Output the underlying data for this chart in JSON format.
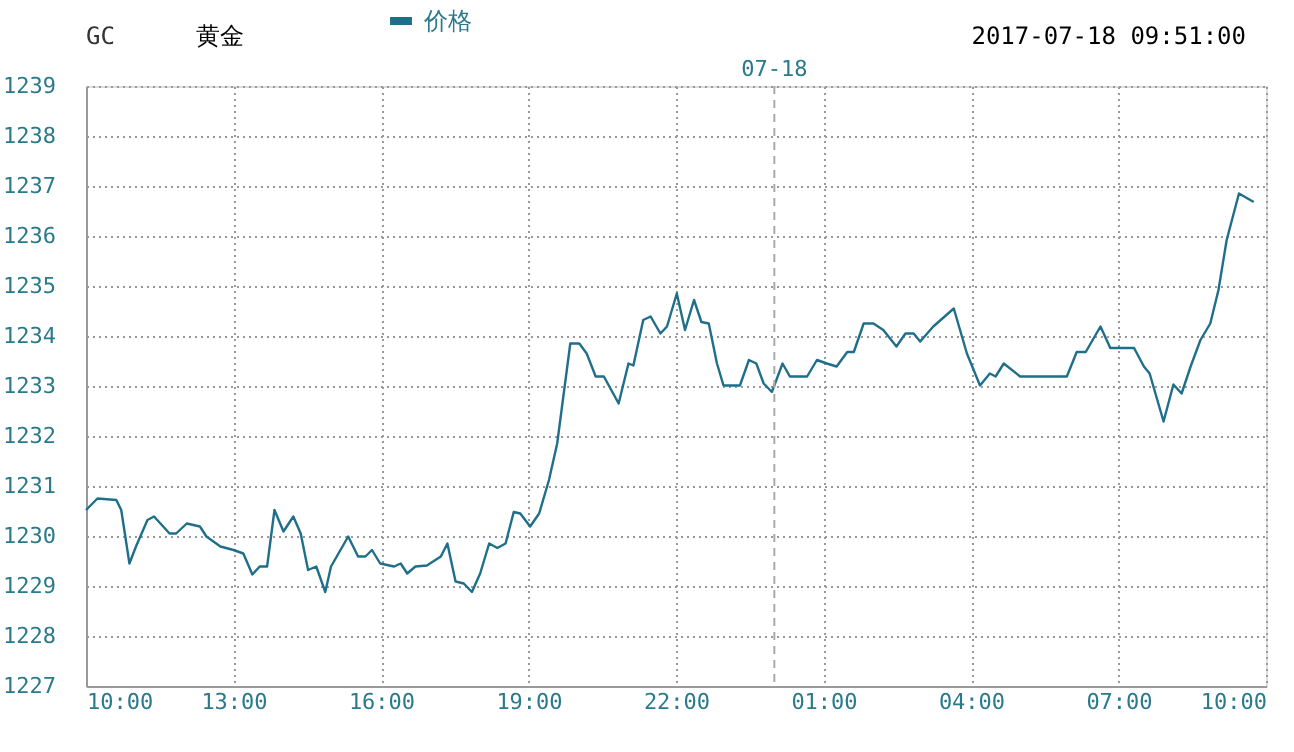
{
  "chart_data": {
    "type": "line",
    "title": "GC",
    "subtitle": "黄金",
    "annotations": [
      "2017-07-18 09:51:00"
    ],
    "legend": "top",
    "grid": true,
    "line_style": "solid",
    "marker": "none",
    "xlim": [
      "2017-07-17T10:00",
      "2017-07-18T10:00"
    ],
    "xticks": [
      {
        "value": "2017-07-17T10:00",
        "label": "10:00"
      },
      {
        "value": "2017-07-17T13:00",
        "label": "13:00"
      },
      {
        "value": "2017-07-17T16:00",
        "label": "16:00"
      },
      {
        "value": "2017-07-17T19:00",
        "label": "19:00"
      },
      {
        "value": "2017-07-17T22:00",
        "label": "22:00"
      },
      {
        "value": "2017-07-18T01:00",
        "label": "01:00"
      },
      {
        "value": "2017-07-18T04:00",
        "label": "04:00"
      },
      {
        "value": "2017-07-18T07:00",
        "label": "07:00"
      },
      {
        "value": "2017-07-18T10:00",
        "label": "10:00"
      }
    ],
    "ylim": [
      1227,
      1239
    ],
    "yticks": [
      1227,
      1228,
      1229,
      1230,
      1231,
      1232,
      1233,
      1234,
      1235,
      1236,
      1237,
      1238,
      1239
    ],
    "ref_lines": [
      {
        "axis": "x",
        "value": "2017-07-18T00:00",
        "label": "07-18",
        "line_style": "dashed",
        "color": "#aaaaaa"
      }
    ],
    "x": [
      "2017-07-17T10:00",
      "2017-07-17T10:14",
      "2017-07-17T10:37",
      "2017-07-17T10:43",
      "2017-07-17T10:53",
      "2017-07-17T11:01",
      "2017-07-17T11:15",
      "2017-07-17T11:23",
      "2017-07-17T11:42",
      "2017-07-17T11:50",
      "2017-07-17T12:03",
      "2017-07-17T12:19",
      "2017-07-17T12:27",
      "2017-07-17T12:44",
      "2017-07-17T13:00",
      "2017-07-17T13:12",
      "2017-07-17T13:23",
      "2017-07-17T13:32",
      "2017-07-17T13:41",
      "2017-07-17T13:50",
      "2017-07-17T14:01",
      "2017-07-17T14:13",
      "2017-07-17T14:22",
      "2017-07-17T14:31",
      "2017-07-17T14:41",
      "2017-07-17T14:52",
      "2017-07-17T14:59",
      "2017-07-17T15:20",
      "2017-07-17T15:32",
      "2017-07-17T15:41",
      "2017-07-17T15:49",
      "2017-07-17T15:59",
      "2017-07-17T16:16",
      "2017-07-17T16:24",
      "2017-07-17T16:32",
      "2017-07-17T16:42",
      "2017-07-17T16:56",
      "2017-07-17T17:13",
      "2017-07-17T17:21",
      "2017-07-17T17:31",
      "2017-07-17T17:41",
      "2017-07-17T17:51",
      "2017-07-17T18:01",
      "2017-07-17T18:12",
      "2017-07-17T18:22",
      "2017-07-17T18:32",
      "2017-07-17T18:42",
      "2017-07-17T18:50",
      "2017-07-17T19:02",
      "2017-07-17T19:13",
      "2017-07-17T19:25",
      "2017-07-17T19:35",
      "2017-07-17T19:43",
      "2017-07-17T19:51",
      "2017-07-17T20:02",
      "2017-07-17T20:11",
      "2017-07-17T20:22",
      "2017-07-17T20:32",
      "2017-07-17T20:50",
      "2017-07-17T21:02",
      "2017-07-17T21:08",
      "2017-07-17T21:20",
      "2017-07-17T21:29",
      "2017-07-17T21:41",
      "2017-07-17T21:49",
      "2017-07-17T22:01",
      "2017-07-17T22:11",
      "2017-07-17T22:22",
      "2017-07-17T22:31",
      "2017-07-17T22:40",
      "2017-07-17T22:50",
      "2017-07-17T22:58",
      "2017-07-17T23:18",
      "2017-07-17T23:29",
      "2017-07-17T23:38",
      "2017-07-17T23:47",
      "2017-07-17T23:57",
      "2017-07-18T00:10",
      "2017-07-18T00:19",
      "2017-07-18T00:40",
      "2017-07-18T00:52",
      "2017-07-18T01:04",
      "2017-07-18T01:16",
      "2017-07-18T01:29",
      "2017-07-18T01:37",
      "2017-07-18T01:49",
      "2017-07-18T02:01",
      "2017-07-18T02:13",
      "2017-07-18T02:29",
      "2017-07-18T02:40",
      "2017-07-18T02:50",
      "2017-07-18T02:58",
      "2017-07-18T03:14",
      "2017-07-18T03:39",
      "2017-07-18T03:55",
      "2017-07-18T04:11",
      "2017-07-18T04:23",
      "2017-07-18T04:30",
      "2017-07-18T04:40",
      "2017-07-18T05:00",
      "2017-07-18T05:57",
      "2017-07-18T06:09",
      "2017-07-18T06:20",
      "2017-07-18T06:38",
      "2017-07-18T06:50",
      "2017-07-18T07:19",
      "2017-07-18T07:31",
      "2017-07-18T07:38",
      "2017-07-18T07:55",
      "2017-07-18T08:07",
      "2017-07-18T08:17",
      "2017-07-18T08:28",
      "2017-07-18T08:40",
      "2017-07-18T08:52",
      "2017-07-18T09:02",
      "2017-07-18T09:12",
      "2017-07-18T09:27",
      "2017-07-18T09:45"
    ],
    "series": [
      {
        "name": "价格",
        "color": "#1f6f8b",
        "values": [
          1230.52,
          1230.75,
          1230.72,
          1230.52,
          1229.45,
          1229.79,
          1230.32,
          1230.39,
          1230.05,
          1230.05,
          1230.25,
          1230.19,
          1229.99,
          1229.79,
          1229.72,
          1229.65,
          1229.23,
          1229.39,
          1229.39,
          1230.52,
          1230.09,
          1230.39,
          1230.05,
          1229.32,
          1229.39,
          1228.88,
          1229.39,
          1229.99,
          1229.59,
          1229.59,
          1229.72,
          1229.45,
          1229.39,
          1229.45,
          1229.25,
          1229.39,
          1229.41,
          1229.59,
          1229.85,
          1229.09,
          1229.05,
          1228.88,
          1229.25,
          1229.85,
          1229.76,
          1229.85,
          1230.48,
          1230.45,
          1230.19,
          1230.45,
          1231.12,
          1231.85,
          1232.85,
          1233.85,
          1233.85,
          1233.65,
          1233.19,
          1233.19,
          1232.65,
          1233.45,
          1233.41,
          1234.32,
          1234.39,
          1234.05,
          1234.19,
          1234.85,
          1234.12,
          1234.72,
          1234.28,
          1234.25,
          1233.45,
          1233.01,
          1233.01,
          1233.52,
          1233.45,
          1233.05,
          1232.88,
          1233.45,
          1233.19,
          1233.19,
          1233.52,
          1233.45,
          1233.39,
          1233.68,
          1233.68,
          1234.25,
          1234.25,
          1234.12,
          1233.79,
          1234.05,
          1234.05,
          1233.89,
          1234.19,
          1234.55,
          1233.65,
          1233.01,
          1233.25,
          1233.19,
          1233.45,
          1233.19,
          1233.19,
          1233.68,
          1233.68,
          1234.19,
          1233.76,
          1233.76,
          1233.39,
          1233.25,
          1232.29,
          1233.03,
          1232.85,
          1233.39,
          1233.92,
          1234.25,
          1234.92,
          1235.92,
          1236.85,
          1236.68
        ]
      }
    ]
  }
}
